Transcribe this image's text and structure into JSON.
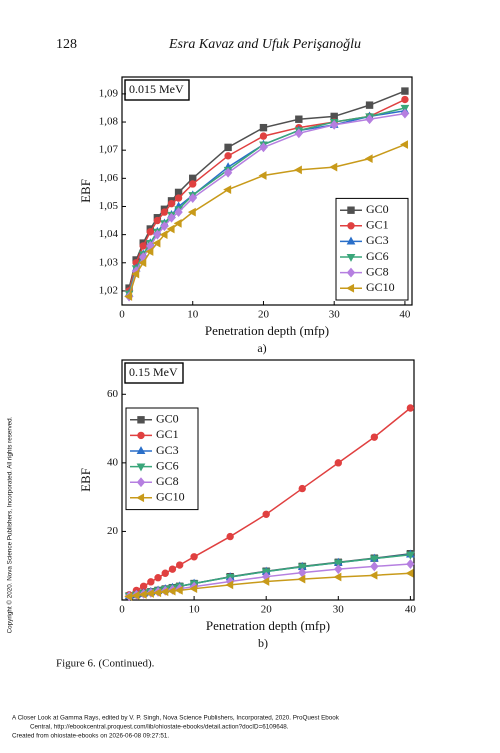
{
  "header": {
    "page_number": "128",
    "running_head": "Esra Kavaz and Ufuk Perişanoğlu"
  },
  "chart_data": [
    {
      "type": "line",
      "annotation": "0.015 MeV",
      "xlabel": "Penetration depth (mfp)",
      "ylabel": "EBF",
      "panel_label": "a)",
      "legend": "lower right",
      "x": [
        1,
        2,
        3,
        4,
        5,
        6,
        7,
        8,
        10,
        15,
        20,
        25,
        30,
        35,
        40
      ],
      "xlim": [
        0,
        41
      ],
      "xticks": [
        0,
        10,
        20,
        30,
        40
      ],
      "ylim": [
        1.015,
        1.096
      ],
      "yticks": [
        {
          "value": 1.02,
          "label": "1,02"
        },
        {
          "value": 1.03,
          "label": "1,03"
        },
        {
          "value": 1.04,
          "label": "1,04"
        },
        {
          "value": 1.05,
          "label": "1,05"
        },
        {
          "value": 1.06,
          "label": "1,06"
        },
        {
          "value": 1.07,
          "label": "1,07"
        },
        {
          "value": 1.08,
          "label": "1,08"
        },
        {
          "value": 1.09,
          "label": "1,09"
        }
      ],
      "series": [
        {
          "name": "GC0",
          "color": "#505050",
          "marker": "square",
          "values": [
            1.021,
            1.031,
            1.037,
            1.042,
            1.046,
            1.049,
            1.052,
            1.055,
            1.06,
            1.071,
            1.078,
            1.081,
            1.082,
            1.086,
            1.091
          ]
        },
        {
          "name": "GC1",
          "color": "#e04040",
          "marker": "circle",
          "values": [
            1.02,
            1.03,
            1.036,
            1.041,
            1.045,
            1.048,
            1.051,
            1.053,
            1.058,
            1.068,
            1.075,
            1.078,
            1.08,
            1.082,
            1.088
          ]
        },
        {
          "name": "GC3",
          "color": "#2a6fc9",
          "marker": "triangle-up",
          "values": [
            1.019,
            1.028,
            1.033,
            1.037,
            1.041,
            1.044,
            1.047,
            1.05,
            1.054,
            1.064,
            1.072,
            1.077,
            1.079,
            1.082,
            1.084
          ]
        },
        {
          "name": "GC6",
          "color": "#3aa67a",
          "marker": "triangle-down",
          "values": [
            1.019,
            1.028,
            1.033,
            1.037,
            1.041,
            1.044,
            1.047,
            1.049,
            1.054,
            1.063,
            1.072,
            1.077,
            1.08,
            1.082,
            1.085
          ]
        },
        {
          "name": "GC8",
          "color": "#b57fe0",
          "marker": "diamond",
          "values": [
            1.018,
            1.027,
            1.032,
            1.036,
            1.04,
            1.043,
            1.046,
            1.048,
            1.053,
            1.062,
            1.071,
            1.076,
            1.079,
            1.081,
            1.083
          ]
        },
        {
          "name": "GC10",
          "color": "#c89a1a",
          "marker": "triangle-left",
          "values": [
            1.018,
            1.026,
            1.03,
            1.034,
            1.037,
            1.04,
            1.042,
            1.044,
            1.048,
            1.056,
            1.061,
            1.063,
            1.064,
            1.067,
            1.072
          ]
        }
      ]
    },
    {
      "type": "line",
      "annotation": "0.15 MeV",
      "xlabel": "Penetration depth (mfp)",
      "ylabel": "EBF",
      "panel_label": "b)",
      "legend": "upper left",
      "x": [
        1,
        2,
        3,
        4,
        5,
        6,
        7,
        8,
        10,
        15,
        20,
        25,
        30,
        35,
        40
      ],
      "xlim": [
        0,
        40.5
      ],
      "xticks": [
        0,
        10,
        20,
        30,
        40
      ],
      "ylim": [
        0,
        70
      ],
      "yticks": [
        20,
        40,
        60
      ],
      "series": [
        {
          "name": "GC0",
          "color": "#505050",
          "marker": "square",
          "values": [
            1.2,
            1.6,
            2.0,
            2.4,
            2.8,
            3.2,
            3.6,
            4.0,
            4.8,
            6.8,
            8.4,
            9.8,
            11.0,
            12.2,
            13.5
          ]
        },
        {
          "name": "GC1",
          "color": "#e04040",
          "marker": "circle",
          "values": [
            1.5,
            2.8,
            4.0,
            5.3,
            6.5,
            7.8,
            9.0,
            10.2,
            12.6,
            18.5,
            25,
            32.5,
            40,
            47.5,
            56
          ]
        },
        {
          "name": "GC3",
          "color": "#2a6fc9",
          "marker": "triangle-up",
          "values": [
            1.2,
            1.6,
            2.0,
            2.4,
            2.8,
            3.2,
            3.6,
            4.0,
            4.8,
            6.7,
            8.3,
            9.7,
            10.9,
            12.1,
            13.3
          ]
        },
        {
          "name": "GC6",
          "color": "#3aa67a",
          "marker": "triangle-down",
          "values": [
            1.2,
            1.6,
            2.0,
            2.4,
            2.8,
            3.2,
            3.6,
            4.0,
            4.8,
            6.7,
            8.3,
            9.7,
            10.9,
            12.1,
            13.2
          ]
        },
        {
          "name": "GC8",
          "color": "#b57fe0",
          "marker": "diamond",
          "values": [
            1.1,
            1.5,
            1.8,
            2.1,
            2.4,
            2.7,
            3.0,
            3.3,
            3.9,
            5.4,
            6.8,
            8.0,
            9.0,
            9.8,
            10.5
          ]
        },
        {
          "name": "GC10",
          "color": "#c89a1a",
          "marker": "triangle-left",
          "values": [
            1.0,
            1.3,
            1.6,
            1.9,
            2.1,
            2.4,
            2.6,
            2.8,
            3.3,
            4.4,
            5.4,
            6.1,
            6.7,
            7.2,
            7.8
          ]
        }
      ]
    }
  ],
  "caption": "Figure 6. (Continued).",
  "side_note": "Copyright © 2020. Nova Science Publishers, Incorporated. All rights reserved.",
  "footer": [
    "A Closer Look at Gamma Rays, edited by V. P. Singh, Nova Science Publishers, Incorporated, 2020. ProQuest Ebook",
    "Central, http://ebookcentral.proquest.com/lib/ohiostate-ebooks/detail.action?docID=6109648.",
    "Created from ohiostate-ebooks on 2026-06-08 09:27:51."
  ]
}
